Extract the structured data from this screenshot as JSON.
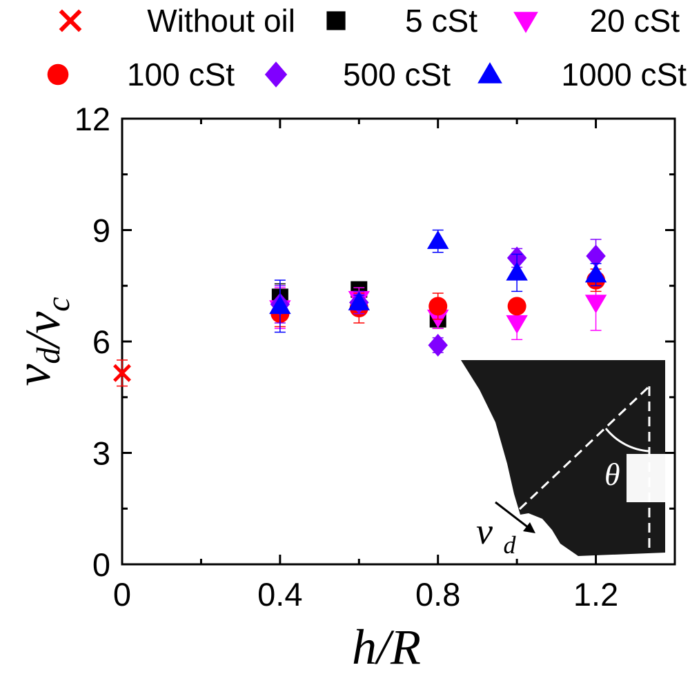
{
  "chart_data": {
    "type": "scatter",
    "xlabel": "h/R",
    "ylabel": "v_d/v_c",
    "xlim": [
      0,
      1.4
    ],
    "ylim": [
      0,
      12
    ],
    "x_ticks": [
      "0",
      "0.4",
      "0.8",
      "1.2"
    ],
    "y_ticks": [
      "0",
      "3",
      "6",
      "9",
      "12"
    ],
    "grid": false,
    "legend_position": "top",
    "series": [
      {
        "name": "Without oil",
        "marker": "x",
        "color": "#ff0000",
        "points": [
          {
            "x": 0,
            "y": 5.15,
            "err": 0.35
          }
        ]
      },
      {
        "name": "5 cSt",
        "marker": "square",
        "color": "#000000",
        "points": [
          {
            "x": 0.4,
            "y": 7.2,
            "err": 0.35
          },
          {
            "x": 0.6,
            "y": 7.4,
            "err": 0.2
          },
          {
            "x": 0.8,
            "y": 6.6,
            "err": 0.25
          }
        ]
      },
      {
        "name": "20 cSt",
        "marker": "triangle-down",
        "color": "#ff00ff",
        "points": [
          {
            "x": 0.4,
            "y": 6.9,
            "err": 0.55
          },
          {
            "x": 0.6,
            "y": 7.15,
            "err": 0.3
          },
          {
            "x": 0.8,
            "y": 6.65,
            "err": 0.3
          },
          {
            "x": 1.0,
            "y": 6.5,
            "err": 0.45
          },
          {
            "x": 1.2,
            "y": 7.05,
            "err": 0.75
          }
        ]
      },
      {
        "name": "100 cSt",
        "marker": "circle",
        "color": "#ff0000",
        "points": [
          {
            "x": 0.4,
            "y": 6.75,
            "err": 0.35
          },
          {
            "x": 0.6,
            "y": 6.9,
            "err": 0.4
          },
          {
            "x": 0.8,
            "y": 6.95,
            "err": 0.35
          },
          {
            "x": 1.0,
            "y": 6.95,
            "err": 0.15
          },
          {
            "x": 1.2,
            "y": 7.65,
            "err": 0.3
          }
        ]
      },
      {
        "name": "500 cSt",
        "marker": "diamond",
        "color": "#8000ff",
        "points": [
          {
            "x": 0.4,
            "y": 7.0,
            "err": 0.5
          },
          {
            "x": 0.6,
            "y": 7.05,
            "err": 0.3
          },
          {
            "x": 0.8,
            "y": 5.9,
            "err": 0.2
          },
          {
            "x": 1.0,
            "y": 8.25,
            "err": 0.25
          },
          {
            "x": 1.2,
            "y": 8.3,
            "err": 0.45
          }
        ]
      },
      {
        "name": "1000 cSt",
        "marker": "triangle-up",
        "color": "#0000ff",
        "points": [
          {
            "x": 0.4,
            "y": 6.95,
            "err": 0.7
          },
          {
            "x": 0.6,
            "y": 7.05,
            "err": 0.2
          },
          {
            "x": 0.8,
            "y": 8.7,
            "err": 0.3
          },
          {
            "x": 1.0,
            "y": 7.85,
            "err": 0.5
          },
          {
            "x": 1.2,
            "y": 7.8,
            "err": 0.3
          }
        ]
      }
    ],
    "inset": {
      "angle_label": "θ",
      "velocity_label": "v_d"
    }
  }
}
